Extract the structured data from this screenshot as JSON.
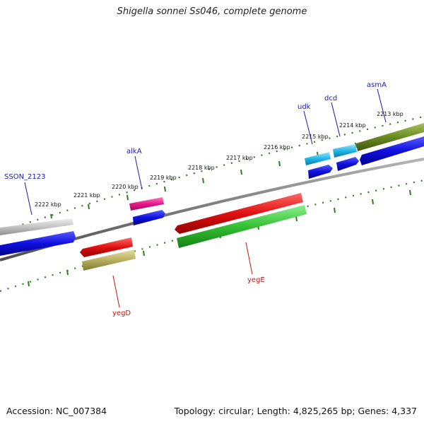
{
  "title": "Shigella sonnei Ss046, complete genome",
  "footer": {
    "accession": "Accession: NC_007384",
    "summary": "Topology: circular; Length: 4,825,265 bp; Genes: 4,337"
  },
  "colors": {
    "backbone": "#7a7a7a",
    "tick": "#2e7d1e",
    "label_forward": "#1a1aa8",
    "label_reverse": "#c41414"
  },
  "scale_labels": [
    "2222 kbp",
    "2221 kbp",
    "2220 kbp",
    "2219 kbp",
    "2218 kbp",
    "2217 kbp",
    "2216 kbp",
    "2215 kbp",
    "2214 kbp",
    "2213 kbp"
  ],
  "genes": [
    {
      "name": "SSON_2123",
      "strand": "forward",
      "color": "#1010e0",
      "top_color": "#c8c8c8"
    },
    {
      "name": "alkA",
      "strand": "forward",
      "color": "#1010e0",
      "top_color": "#e8188a"
    },
    {
      "name": "udk",
      "strand": "forward",
      "color": "#1010e0",
      "top_color": "#22b8e8"
    },
    {
      "name": "dcd",
      "strand": "forward",
      "color": "#1010e0",
      "top_color": "#22b8e8"
    },
    {
      "name": "asmA",
      "strand": "forward",
      "color": "#1010e0",
      "top_color": "#6a8a22"
    },
    {
      "name": "yegD",
      "strand": "reverse",
      "color": "#e01010",
      "bottom_color": "#b8b060"
    },
    {
      "name": "yegE",
      "strand": "reverse",
      "color": "#e01010",
      "bottom_color": "#33c033"
    }
  ]
}
